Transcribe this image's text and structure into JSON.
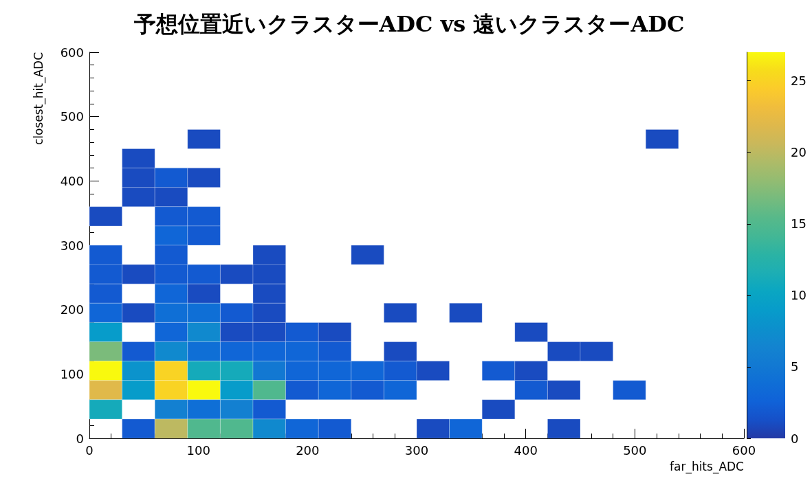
{
  "chart_data": {
    "type": "heatmap",
    "title": "予想位置近いクラスターADC vs 遠いクラスターADC",
    "xlabel": "far_hits_ADC",
    "ylabel": "closest_hit_ADC",
    "x": [
      15,
      45,
      75,
      105,
      135,
      165,
      195,
      225,
      255,
      285,
      315,
      345,
      375,
      405,
      435,
      465,
      495,
      525
    ],
    "y": [
      465,
      435,
      405,
      375,
      345,
      315,
      285,
      255,
      225,
      195,
      165,
      135,
      105,
      75,
      45,
      15
    ],
    "xlim": [
      0,
      600
    ],
    "xticks": [
      0,
      100,
      200,
      300,
      400,
      500,
      600
    ],
    "ylim": [
      0,
      600
    ],
    "yticks": [
      0,
      100,
      200,
      300,
      400,
      500,
      600
    ],
    "clim": [
      0,
      27
    ],
    "cticks": [
      0,
      5,
      10,
      15,
      20,
      25
    ],
    "cells": [
      [
        null,
        null,
        null,
        1,
        null,
        null,
        null,
        null,
        null,
        null,
        null,
        null,
        null,
        null,
        null,
        null,
        null,
        1
      ],
      [
        null,
        1,
        null,
        null,
        null,
        null,
        null,
        null,
        null,
        null,
        null,
        null,
        null,
        null,
        null,
        null,
        null,
        null
      ],
      [
        null,
        1,
        2,
        1,
        null,
        null,
        null,
        null,
        null,
        null,
        null,
        null,
        null,
        null,
        null,
        null,
        null,
        null
      ],
      [
        null,
        1,
        1,
        null,
        null,
        null,
        null,
        null,
        null,
        null,
        null,
        null,
        null,
        null,
        null,
        null,
        null,
        null
      ],
      [
        1,
        null,
        2,
        2,
        null,
        null,
        null,
        null,
        null,
        null,
        null,
        null,
        null,
        null,
        null,
        null,
        null,
        null
      ],
      [
        null,
        null,
        3,
        2,
        null,
        null,
        null,
        null,
        null,
        null,
        null,
        null,
        null,
        null,
        null,
        null,
        null,
        null
      ],
      [
        2,
        null,
        2,
        null,
        null,
        1,
        null,
        null,
        1,
        null,
        null,
        null,
        null,
        null,
        null,
        null,
        null,
        null
      ],
      [
        2,
        1,
        2,
        2,
        1,
        1,
        null,
        null,
        null,
        null,
        null,
        null,
        null,
        null,
        null,
        null,
        null,
        null
      ],
      [
        2,
        null,
        3,
        1,
        null,
        1,
        null,
        null,
        null,
        null,
        null,
        null,
        null,
        null,
        null,
        null,
        null,
        null
      ],
      [
        3,
        1,
        4,
        4,
        2,
        1,
        null,
        null,
        null,
        1,
        null,
        1,
        null,
        null,
        null,
        null,
        null,
        null
      ],
      [
        9,
        null,
        3,
        7,
        1,
        1,
        2,
        1,
        null,
        null,
        null,
        null,
        null,
        1,
        null,
        null,
        null,
        null
      ],
      [
        17,
        2,
        7,
        4,
        3,
        3,
        3,
        2,
        null,
        1,
        null,
        null,
        null,
        null,
        1,
        1,
        null,
        null
      ],
      [
        27,
        8,
        25,
        11,
        11,
        5,
        3,
        3,
        3,
        2,
        1,
        null,
        2,
        1,
        null,
        null,
        null,
        null
      ],
      [
        22,
        9,
        25,
        27,
        9,
        15,
        2,
        3,
        2,
        3,
        null,
        null,
        null,
        2,
        1,
        null,
        2,
        null
      ],
      [
        11,
        null,
        6,
        4,
        6,
        2,
        null,
        null,
        null,
        null,
        null,
        null,
        1,
        null,
        null,
        null,
        null,
        null
      ],
      [
        null,
        2,
        20,
        15,
        15,
        7,
        3,
        2,
        null,
        null,
        1,
        3,
        null,
        null,
        1,
        null,
        null,
        null
      ]
    ]
  }
}
